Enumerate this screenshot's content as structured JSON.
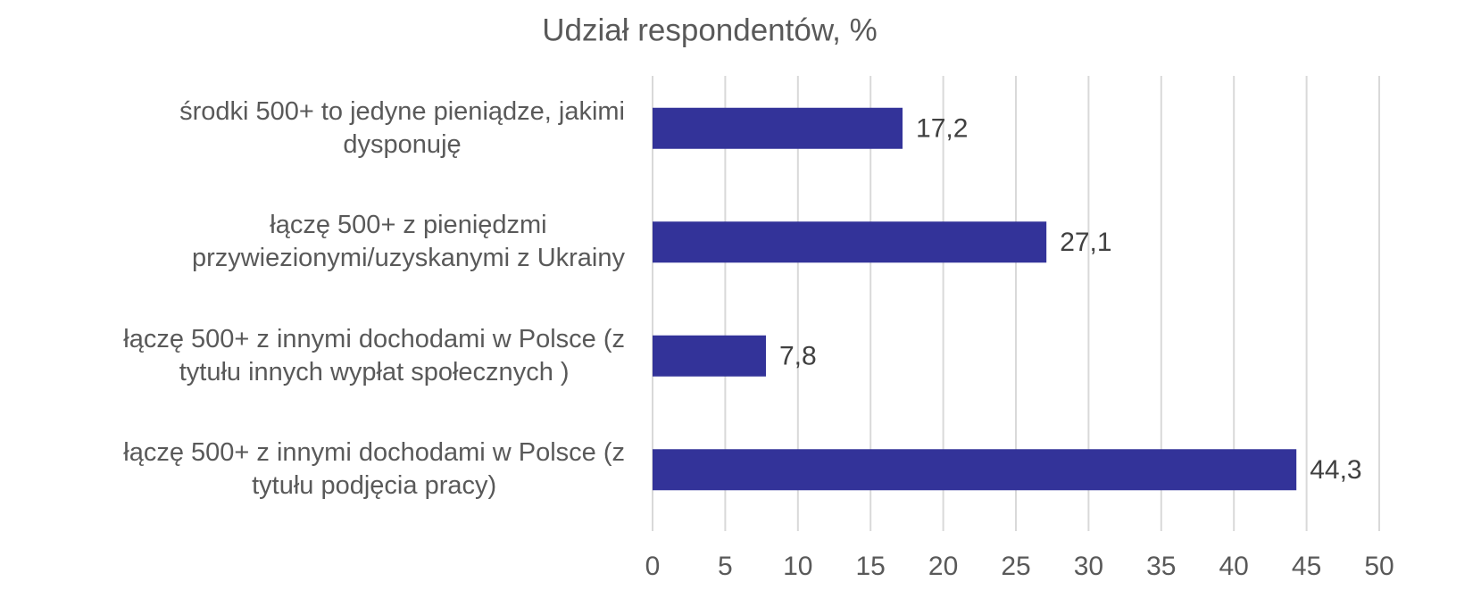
{
  "chart_data": {
    "type": "bar",
    "orientation": "horizontal",
    "title": "Udział respondentów, %",
    "categories": [
      "środki 500+ to jedyne pieniądze, jakimi\ndysponuję",
      "łączę 500+ z pieniędzmi\nprzywiezionymi/uzyskanymi z Ukrainy",
      "łączę 500+ z innymi dochodami w Polsce (z\ntytułu innych wypłat społecznych )",
      "łączę 500+ z innymi dochodami w Polsce (z\ntytułu podjęcia pracy)"
    ],
    "values": [
      17.2,
      27.1,
      7.8,
      44.3
    ],
    "value_labels": [
      "17,2",
      "27,1",
      "7,8",
      "44,3"
    ],
    "color": "#333399",
    "xlim": [
      0,
      50
    ],
    "xticks": [
      0,
      5,
      10,
      15,
      20,
      25,
      30,
      35,
      40,
      45,
      50
    ],
    "grid": true
  }
}
